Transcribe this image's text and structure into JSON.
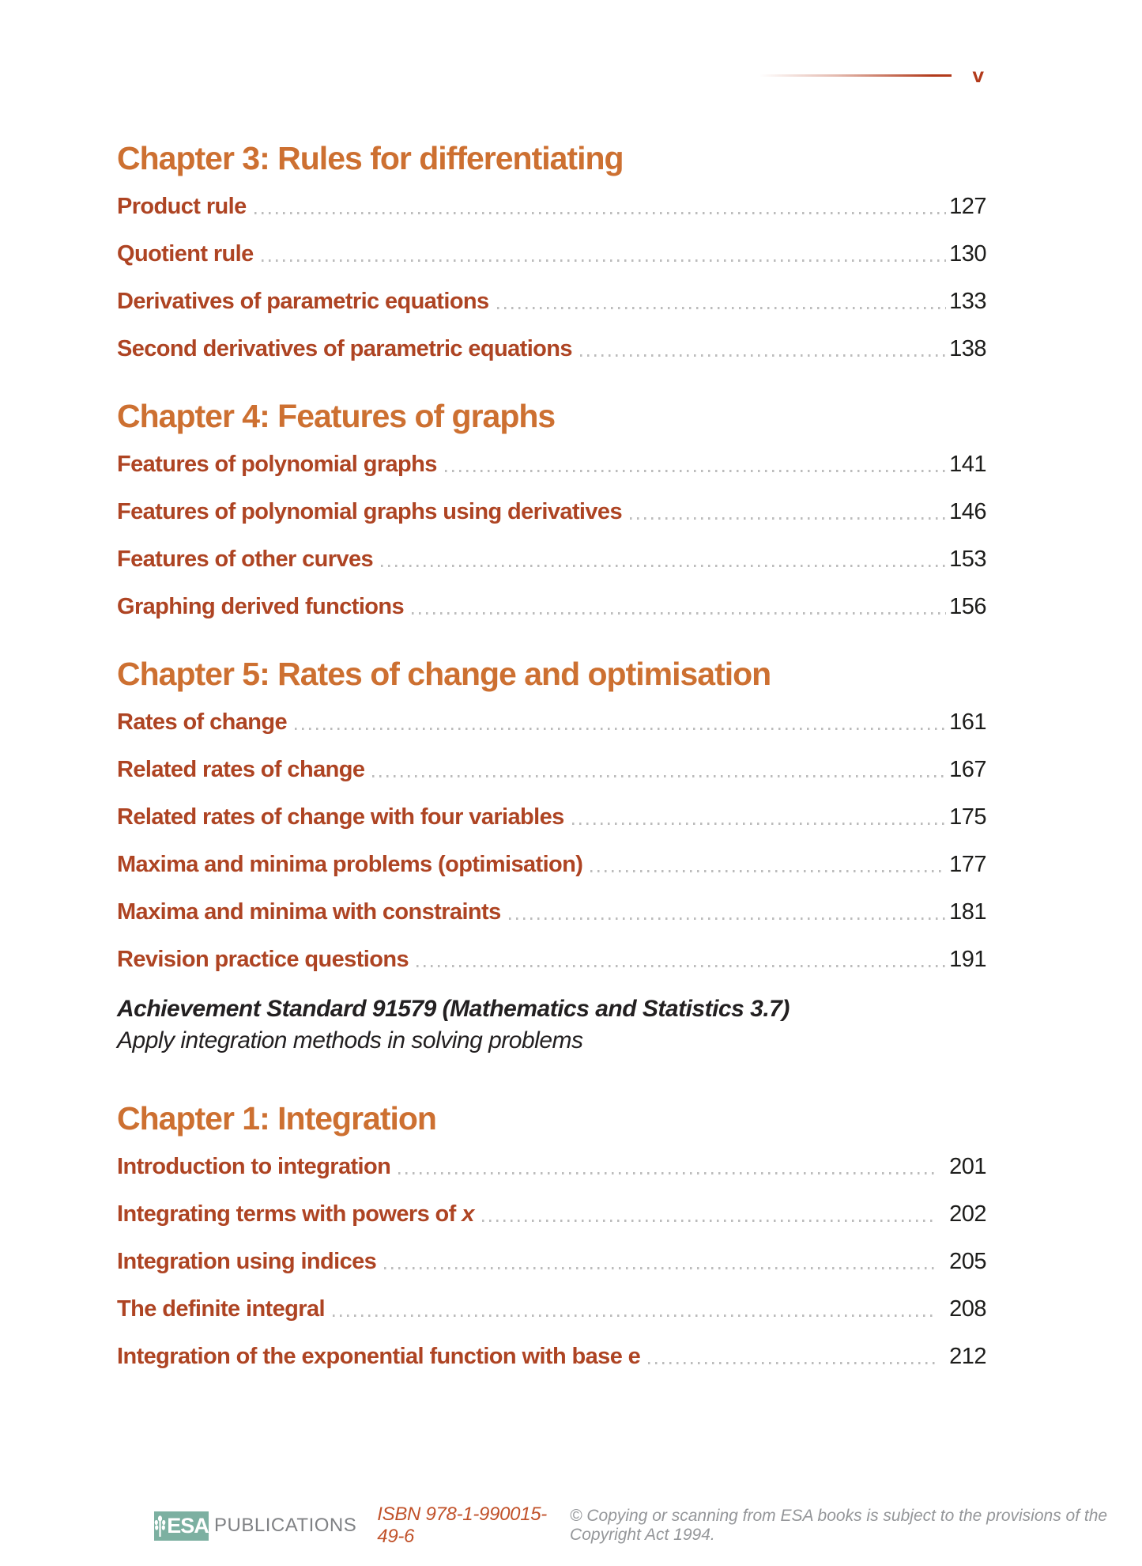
{
  "page": {
    "folio": "v"
  },
  "colors": {
    "chapter_heading": "#cd7031",
    "entry_text": "#ae4423",
    "page_number": "#1d1d1b",
    "accent_rule": "#b23a1b",
    "dot_leader": "#bcbcbc",
    "logo_teal": "#7cb0a1",
    "isbn_text": "#c1522a",
    "copyright_text": "#949699"
  },
  "toc": {
    "sections": [
      {
        "kind": "chapter",
        "heading": "Chapter 3: Rules for differentiating",
        "entries": [
          {
            "title": "Product rule",
            "page": "127"
          },
          {
            "title": "Quotient rule",
            "page": "130"
          },
          {
            "title": "Derivatives of parametric equations",
            "page": "133"
          },
          {
            "title": "Second derivatives of parametric equations",
            "page": "138"
          }
        ]
      },
      {
        "kind": "chapter",
        "heading": "Chapter 4: Features of graphs",
        "entries": [
          {
            "title": "Features of polynomial graphs",
            "page": "141"
          },
          {
            "title": "Features of polynomial graphs using derivatives",
            "page": "146"
          },
          {
            "title": "Features of other curves",
            "page": "153"
          },
          {
            "title": "Graphing derived functions",
            "page": "156"
          }
        ]
      },
      {
        "kind": "chapter",
        "heading": "Chapter 5: Rates of change and optimisation",
        "entries": [
          {
            "title": "Rates of change",
            "page": "161"
          },
          {
            "title": "Related rates of change",
            "page": "167"
          },
          {
            "title": "Related rates of change with four variables",
            "page": "175"
          },
          {
            "title": "Maxima and minima problems (optimisation)",
            "page": "177"
          },
          {
            "title": "Maxima and minima with constraints",
            "page": "181"
          },
          {
            "title": "Revision practice questions",
            "page": "191"
          }
        ]
      },
      {
        "kind": "standard",
        "line1": "Achievement Standard 91579 (Mathematics and Statistics 3.7)",
        "line2": "Apply integration methods in solving problems"
      },
      {
        "kind": "chapter",
        "heading": "Chapter 1: Integration",
        "number_gap": true,
        "entries": [
          {
            "title": "Introduction to integration",
            "page": "201"
          },
          {
            "title": "Integrating terms with powers of ",
            "title_italic": "x",
            "page": "202"
          },
          {
            "title": "Integration using indices",
            "page": "205"
          },
          {
            "title": "The definite integral",
            "page": "208"
          },
          {
            "title": "Integration of the exponential function with base e",
            "page": "212"
          }
        ]
      }
    ]
  },
  "footer": {
    "logo_text": "ESA",
    "logo_word": "PUBLICATIONS",
    "isbn": "ISBN 978-1-990015-49-6",
    "copyright": "© Copying or scanning from ESA books is subject to the provisions of the Copyright Act 1994."
  }
}
